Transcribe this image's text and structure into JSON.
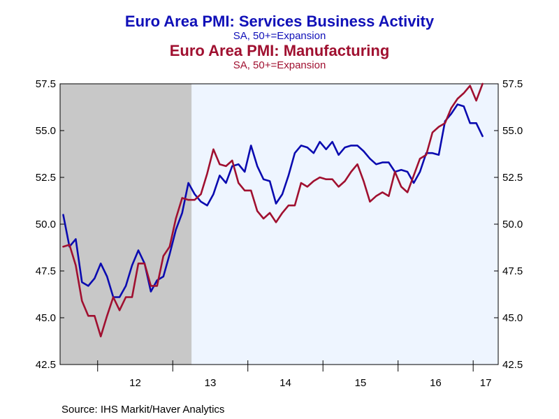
{
  "chart_data": {
    "type": "line",
    "titles": [
      {
        "title": "Euro Area PMI: Services Business Activity",
        "subtitle": "SA, 50+=Expansion",
        "color": "#1010b8"
      },
      {
        "title": "Euro Area PMI: Manufacturing",
        "subtitle": "SA, 50+=Expansion",
        "color": "#a01030"
      }
    ],
    "source": "Source:  IHS Markit/Haver Analytics",
    "ylim": [
      42.5,
      57.5
    ],
    "y_ticks": [
      "42.5",
      "45.0",
      "47.5",
      "50.0",
      "52.5",
      "55.0",
      "57.5"
    ],
    "x_ticks": [
      "12",
      "13",
      "14",
      "15",
      "16",
      "17"
    ],
    "x_start": "2011-07",
    "x_end": "2017-04",
    "recession_shade": {
      "start": "2011-06",
      "end": "2013-03",
      "color": "#c8c8c8"
    },
    "plot_background": "#eef5ff",
    "series": [
      {
        "name": "Services",
        "color": "#0b0bb0",
        "values": [
          50.5,
          48.8,
          49.2,
          46.9,
          46.7,
          47.1,
          47.9,
          47.2,
          46.1,
          46.1,
          46.7,
          47.8,
          48.6,
          47.9,
          46.4,
          47.0,
          47.2,
          48.4,
          49.7,
          50.6,
          52.2,
          51.6,
          51.2,
          51.0,
          51.6,
          52.6,
          52.2,
          53.1,
          53.2,
          52.8,
          54.2,
          53.1,
          52.4,
          52.3,
          51.1,
          51.6,
          52.6,
          53.8,
          54.2,
          54.1,
          53.8,
          54.4,
          54.0,
          54.4,
          53.7,
          54.1,
          54.2,
          54.2,
          53.9,
          53.5,
          53.2,
          53.3,
          53.3,
          52.8,
          52.9,
          52.8,
          52.2,
          52.8,
          53.8,
          53.8,
          53.7,
          55.5,
          55.9,
          56.4,
          56.3,
          55.4,
          55.4,
          54.7
        ]
      },
      {
        "name": "Manufacturing",
        "color": "#a01030",
        "values": [
          48.8,
          48.9,
          47.8,
          45.9,
          45.1,
          45.1,
          44.0,
          45.1,
          46.1,
          45.4,
          46.1,
          46.1,
          47.9,
          47.9,
          46.7,
          46.7,
          48.3,
          48.8,
          50.3,
          51.4,
          51.3,
          51.3,
          51.6,
          52.7,
          54.0,
          53.2,
          53.1,
          53.4,
          52.2,
          51.8,
          51.8,
          50.7,
          50.3,
          50.6,
          50.1,
          50.6,
          51.0,
          51.0,
          52.2,
          52.0,
          52.3,
          52.5,
          52.4,
          52.4,
          52.0,
          52.3,
          52.8,
          53.2,
          52.3,
          51.2,
          51.5,
          51.7,
          51.5,
          52.8,
          52.0,
          51.7,
          52.6,
          53.5,
          53.7,
          54.9,
          55.2,
          55.4,
          56.2,
          56.7,
          57.0,
          57.4,
          56.6,
          57.5
        ]
      }
    ]
  }
}
